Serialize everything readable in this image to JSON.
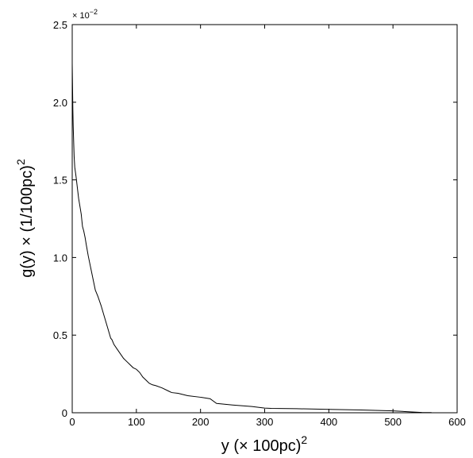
{
  "chart_data": {
    "type": "line",
    "xlabel": "y (× 100pc)",
    "xlabel_superscript": "2",
    "ylabel": "g(y) × (1/100pc)",
    "ylabel_superscript": "2",
    "y_multiplier": "× 10",
    "y_multiplier_exponent": "−2",
    "xlim": [
      0,
      600
    ],
    "ylim": [
      0,
      0.025
    ],
    "x_ticks": [
      0,
      100,
      200,
      300,
      400,
      500,
      600
    ],
    "x_tick_labels": [
      "0",
      "100",
      "200",
      "300",
      "400",
      "500",
      "600"
    ],
    "y_ticks": [
      0,
      0.005,
      0.01,
      0.015,
      0.02,
      0.025
    ],
    "y_tick_labels": [
      "0",
      "0.5",
      "1.0",
      "1.5",
      "2.0",
      "2.5"
    ],
    "grid": false,
    "series": [
      {
        "x": [
          0,
          0.5,
          1,
          1.5,
          2,
          3,
          4,
          6,
          8,
          10,
          12,
          14,
          16,
          18,
          20,
          22,
          25,
          28,
          30,
          33,
          36,
          40,
          45,
          50,
          55,
          60,
          62,
          65,
          70,
          75,
          80,
          85,
          90,
          95,
          100,
          105,
          110,
          115,
          120,
          125,
          130,
          140,
          150,
          155,
          165,
          180,
          200,
          215,
          225,
          250,
          280,
          300,
          310,
          350,
          400,
          450,
          500,
          530,
          545,
          560
        ],
        "y": [
          0.0225,
          0.021,
          0.0195,
          0.0185,
          0.0178,
          0.0165,
          0.0158,
          0.0152,
          0.0145,
          0.0138,
          0.0133,
          0.0128,
          0.012,
          0.0117,
          0.0113,
          0.0108,
          0.0101,
          0.0095,
          0.0091,
          0.0085,
          0.0079,
          0.0075,
          0.0069,
          0.0062,
          0.0055,
          0.0048,
          0.0047,
          0.0044,
          0.0041,
          0.0038,
          0.0035,
          0.0033,
          0.0031,
          0.0029,
          0.0028,
          0.0026,
          0.0023,
          0.0021,
          0.0019,
          0.0018,
          0.00175,
          0.0016,
          0.0014,
          0.0013,
          0.00125,
          0.0011,
          0.001,
          0.0009,
          0.0006,
          0.0005,
          0.0004,
          0.0003,
          0.00028,
          0.00026,
          0.00022,
          0.00018,
          0.00012,
          5e-05,
          2e-05,
          1e-05
        ]
      }
    ]
  }
}
